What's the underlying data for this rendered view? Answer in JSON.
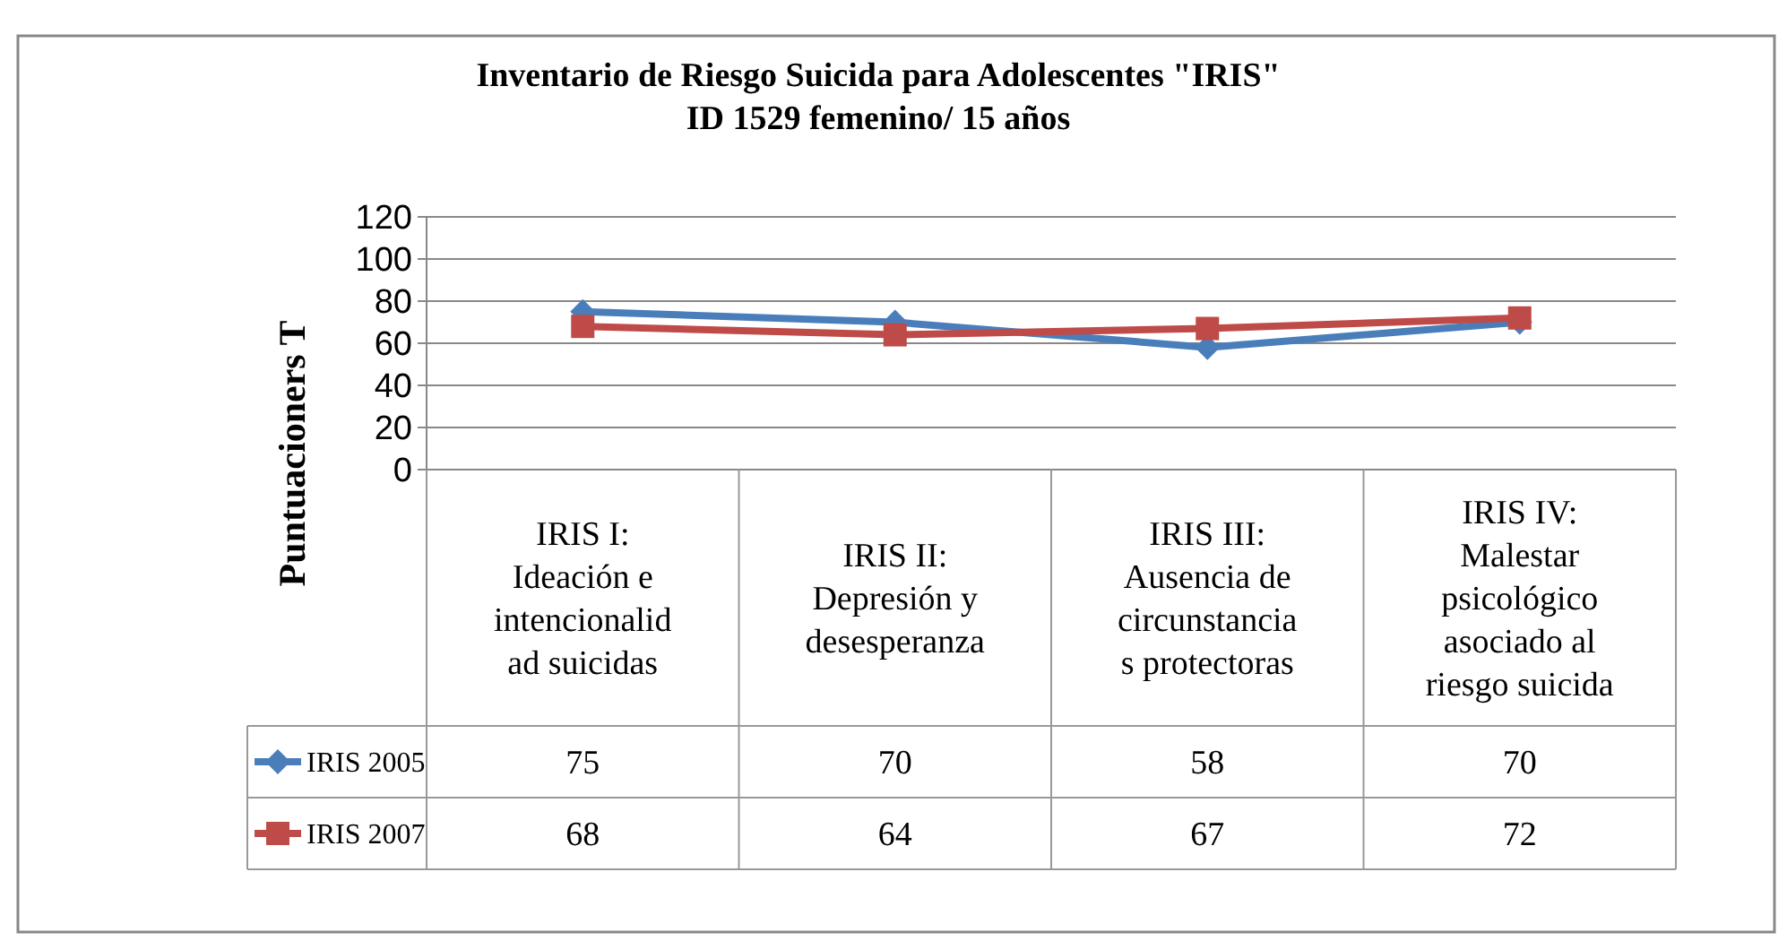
{
  "chart_data": {
    "type": "line",
    "title": "Inventario de Riesgo Suicida para Adolescentes \"IRIS\"",
    "subtitle": "ID 1529 femenino/ 15 años",
    "ylabel": "Puntuacioners T",
    "categories": [
      "IRIS I:\nIdeación e\nintencionalid\nad suicidas",
      "IRIS II:\nDepresión y\ndesesperanza",
      "IRIS III:\nAusencia de\ncircunstancia\ns protectoras",
      "IRIS IV:\nMalestar\npsicológico\nasociado al\nriesgo suicida"
    ],
    "series": [
      {
        "name": "IRIS 2005",
        "color": "#4a7ebb",
        "marker": "diamond",
        "values": [
          75,
          70,
          58,
          70
        ]
      },
      {
        "name": "IRIS 2007",
        "color": "#be4b48",
        "marker": "square",
        "values": [
          68,
          64,
          67,
          72
        ]
      }
    ],
    "ylim": [
      0,
      120
    ],
    "yticks": [
      0,
      20,
      40,
      60,
      80,
      100,
      120
    ],
    "grid": "y",
    "data_labels": true,
    "legend": "bottom left",
    "line_style": "solid"
  }
}
